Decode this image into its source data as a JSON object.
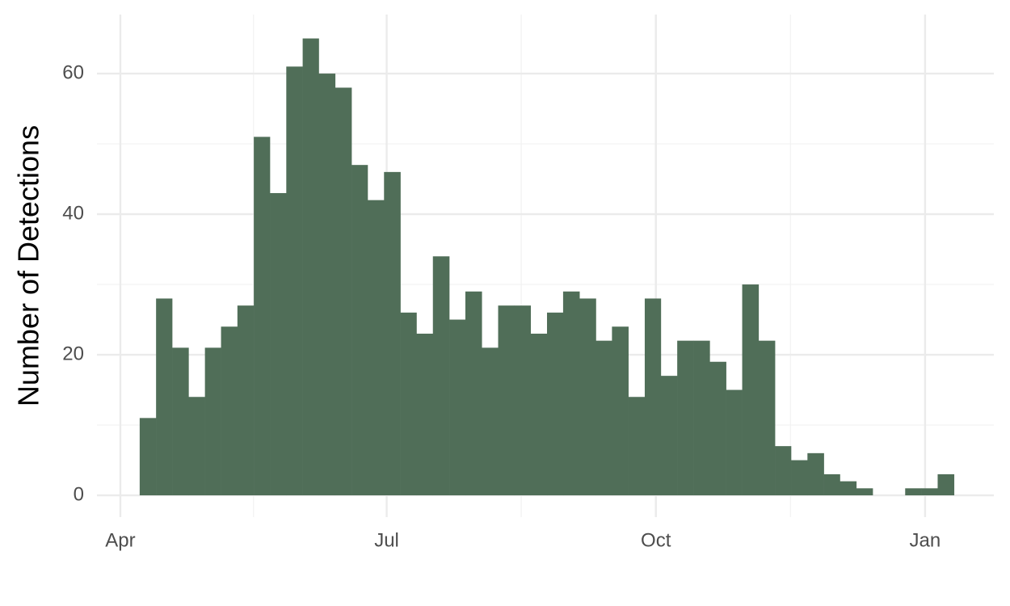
{
  "chart_data": {
    "type": "histogram",
    "y_label": "Number of Detections",
    "color": "#506e58",
    "bins": [
      6.6,
      12.2,
      17.7,
      23.3,
      28.9,
      34.4,
      40.0,
      45.6,
      51.1,
      56.7,
      62.3,
      67.8,
      73.4,
      79.0,
      84.5,
      90.1,
      95.7,
      101.2,
      106.8,
      112.4,
      117.9,
      123.5,
      129.1,
      134.6,
      140.2,
      145.8,
      151.3,
      156.9,
      162.5,
      168.0,
      173.6,
      179.2,
      184.7,
      190.3,
      195.8,
      201.4,
      207.0,
      212.5,
      218.1,
      223.7,
      229.2,
      234.8,
      240.4,
      245.9,
      251.5,
      257.1,
      262.6,
      268.2,
      273.8,
      279.3,
      284.9
    ],
    "counts": [
      11,
      28,
      21,
      14,
      21,
      24,
      27,
      51,
      43,
      61,
      65,
      60,
      58,
      47,
      42,
      46,
      26,
      23,
      34,
      25,
      29,
      21,
      27,
      27,
      23,
      26,
      29,
      28,
      22,
      24,
      14,
      28,
      17,
      22,
      22,
      19,
      15,
      30,
      22,
      7,
      5,
      6,
      3,
      2,
      1,
      0,
      0,
      1,
      1,
      3
    ],
    "xlim": [
      -8,
      298.5
    ],
    "xticks": [
      {
        "value": 0,
        "label": "Apr"
      },
      {
        "value": 91,
        "label": "Jul"
      },
      {
        "value": 183,
        "label": "Oct"
      },
      {
        "value": 275,
        "label": "Jan"
      }
    ],
    "ylim": [
      -3.1,
      68.4
    ],
    "yticks": [
      0,
      20,
      40,
      60
    ],
    "grid": true
  }
}
